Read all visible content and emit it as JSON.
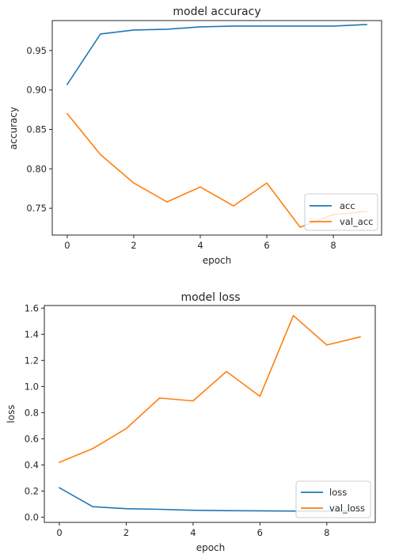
{
  "chart_data": [
    {
      "type": "line",
      "title": "model accuracy",
      "xlabel": "epoch",
      "ylabel": "accuracy",
      "x": [
        0,
        1,
        2,
        3,
        4,
        5,
        6,
        7,
        8,
        9
      ],
      "xlim": [
        -0.45,
        9.45
      ],
      "ylim": [
        0.716,
        0.988
      ],
      "xticks": [
        0,
        2,
        4,
        6,
        8
      ],
      "yticks": [
        0.75,
        0.8,
        0.85,
        0.9,
        0.95
      ],
      "ytick_labels": [
        "0.75",
        "0.80",
        "0.85",
        "0.90",
        "0.95"
      ],
      "grid": false,
      "legend_position": "lower-right",
      "series": [
        {
          "name": "acc",
          "color": "#1f77b4",
          "values": [
            0.907,
            0.971,
            0.976,
            0.977,
            0.98,
            0.981,
            0.981,
            0.981,
            0.981,
            0.983
          ]
        },
        {
          "name": "val_acc",
          "color": "#ff7f0e",
          "values": [
            0.87,
            0.818,
            0.782,
            0.758,
            0.777,
            0.753,
            0.782,
            0.726,
            0.742,
            0.746
          ]
        }
      ]
    },
    {
      "type": "line",
      "title": "model loss",
      "xlabel": "epoch",
      "ylabel": "loss",
      "x": [
        0,
        1,
        2,
        3,
        4,
        5,
        6,
        7,
        8,
        9
      ],
      "xlim": [
        -0.45,
        9.45
      ],
      "ylim": [
        -0.04,
        1.62
      ],
      "xticks": [
        0,
        2,
        4,
        6,
        8
      ],
      "yticks": [
        0.0,
        0.2,
        0.4,
        0.6,
        0.8,
        1.0,
        1.2,
        1.4,
        1.6
      ],
      "ytick_labels": [
        "0.0",
        "0.2",
        "0.4",
        "0.6",
        "0.8",
        "1.0",
        "1.2",
        "1.4",
        "1.6"
      ],
      "grid": false,
      "legend_position": "lower-right",
      "series": [
        {
          "name": "loss",
          "color": "#1f77b4",
          "values": [
            0.225,
            0.08,
            0.065,
            0.06,
            0.053,
            0.05,
            0.048,
            0.047,
            0.047,
            0.046
          ]
        },
        {
          "name": "val_loss",
          "color": "#ff7f0e",
          "values": [
            0.42,
            0.525,
            0.678,
            0.912,
            0.89,
            1.115,
            0.925,
            1.543,
            1.318,
            1.38
          ]
        }
      ]
    }
  ]
}
